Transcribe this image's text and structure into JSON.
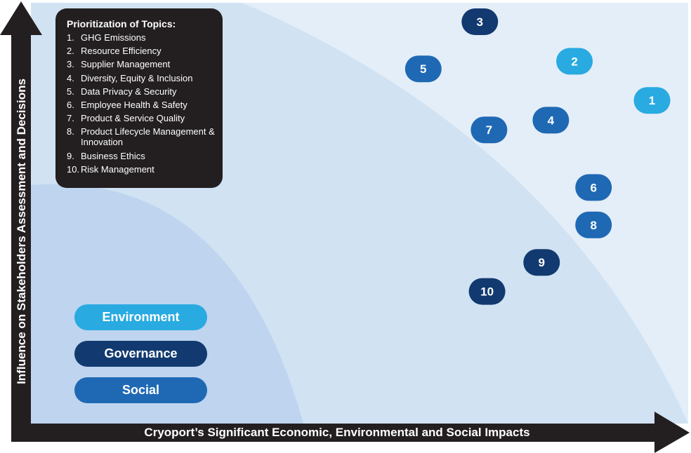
{
  "chart_data": {
    "type": "scatter",
    "title": "",
    "xlabel": "Cryoport’s Significant Economic, Environmental and Social Impacts",
    "ylabel": "Influence on Stakeholders Assessment and Decisions",
    "xlim": [
      0,
      100
    ],
    "ylim": [
      0,
      100
    ],
    "points": [
      {
        "label": "1",
        "x": 94.5,
        "y": 76.8,
        "category": "Environment"
      },
      {
        "label": "2",
        "x": 82.7,
        "y": 86.1,
        "category": "Environment"
      },
      {
        "label": "3",
        "x": 68.3,
        "y": 95.5,
        "category": "Governance"
      },
      {
        "label": "4",
        "x": 79.1,
        "y": 72.1,
        "category": "Social"
      },
      {
        "label": "5",
        "x": 59.7,
        "y": 84.3,
        "category": "Social"
      },
      {
        "label": "6",
        "x": 85.6,
        "y": 56.1,
        "category": "Social"
      },
      {
        "label": "7",
        "x": 69.7,
        "y": 69.8,
        "category": "Social"
      },
      {
        "label": "8",
        "x": 85.6,
        "y": 47.2,
        "category": "Social"
      },
      {
        "label": "9",
        "x": 77.7,
        "y": 38.3,
        "category": "Governance"
      },
      {
        "label": "10",
        "x": 69.4,
        "y": 31.4,
        "category": "Governance"
      }
    ],
    "legend": {
      "position": "bottom-left",
      "entries": [
        {
          "name": "Environment",
          "color": "#29aae1"
        },
        {
          "name": "Governance",
          "color": "#123a70"
        },
        {
          "name": "Social",
          "color": "#1f69b4"
        }
      ]
    }
  },
  "topics": {
    "title": "Prioritization of Topics:",
    "items": [
      {
        "num": "1.",
        "label": "GHG Emissions"
      },
      {
        "num": "2.",
        "label": "Resource Efficiency"
      },
      {
        "num": "3.",
        "label": "Supplier Management"
      },
      {
        "num": "4.",
        "label": "Diversity, Equity & Inclusion"
      },
      {
        "num": "5.",
        "label": "Data Privacy & Security"
      },
      {
        "num": "6.",
        "label": "Employee Health & Safety"
      },
      {
        "num": "7.",
        "label": "Product & Service Quality"
      },
      {
        "num": "8.",
        "label": "Product Lifecycle Management & Innovation"
      },
      {
        "num": "9.",
        "label": "Business Ethics"
      },
      {
        "num": "10.",
        "label": "Risk Management"
      }
    ]
  },
  "colors": {
    "Environment": "#29aae1",
    "Governance": "#123a70",
    "Social": "#1f69b4",
    "axis": "#231f20",
    "band_low": "#bed4ef",
    "band_mid": "#d1e2f3",
    "band_high": "#e4eef8"
  }
}
